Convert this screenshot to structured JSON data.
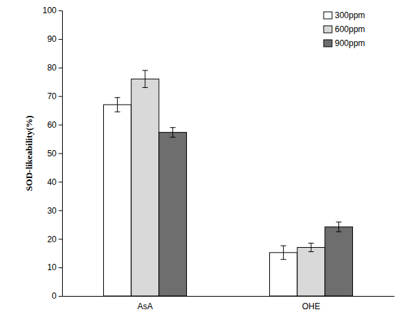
{
  "chart_data": {
    "type": "bar",
    "y_label": "SOD-likeability(%)",
    "categories": [
      "AsA",
      "OHE"
    ],
    "series": [
      {
        "name": "300ppm",
        "color": "#ffffff",
        "values": [
          67,
          15.2
        ],
        "errors": [
          2.5,
          2.4
        ]
      },
      {
        "name": "600ppm",
        "color": "#d9d9d9",
        "values": [
          76,
          17
        ],
        "errors": [
          3,
          1.5
        ]
      },
      {
        "name": "900ppm",
        "color": "#6e6e6e",
        "values": [
          57.3,
          24.2
        ],
        "errors": [
          1.7,
          1.7
        ]
      }
    ],
    "ylim": [
      0,
      100
    ],
    "yticks": [
      0,
      10,
      20,
      30,
      40,
      50,
      60,
      70,
      80,
      90,
      100
    ],
    "grid": false,
    "legend": "top-right"
  }
}
